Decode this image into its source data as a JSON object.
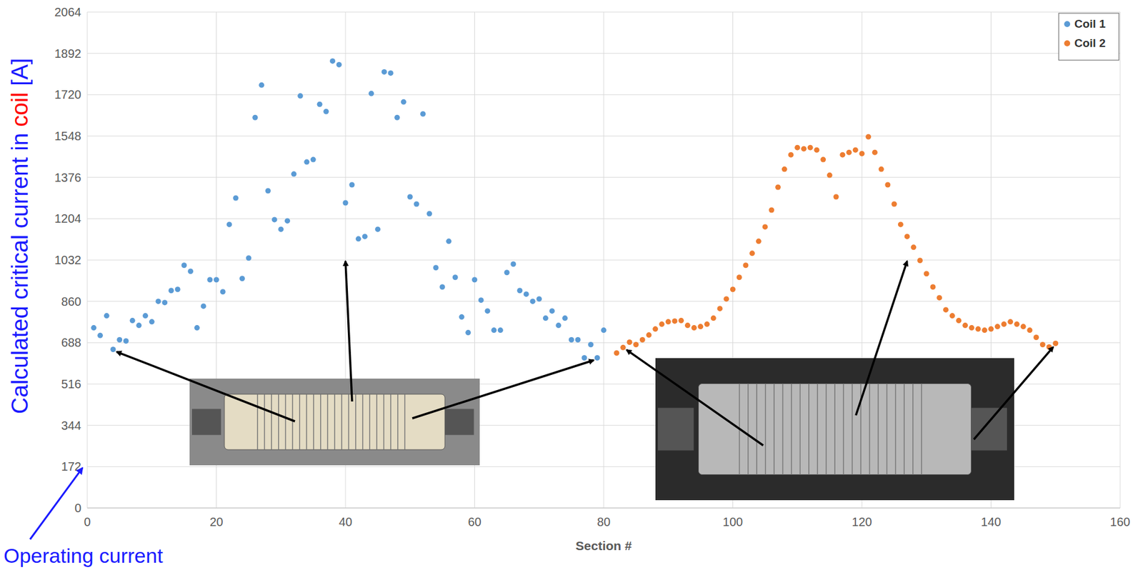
{
  "chart_data": {
    "type": "scatter",
    "xlabel": "Section #",
    "ylabel": [
      "Calculated critical current in ",
      "coil",
      " [A]"
    ],
    "annotations": [
      {
        "text": "Operating current",
        "y": 172
      }
    ],
    "xlim": [
      0,
      160
    ],
    "xticks": [
      0,
      20,
      40,
      60,
      80,
      100,
      120,
      140,
      160
    ],
    "ylim": [
      0,
      2064
    ],
    "yticks": [
      0,
      172,
      344,
      516,
      688,
      860,
      1032,
      1204,
      1376,
      1548,
      1720,
      1892,
      2064
    ],
    "grid": true,
    "legend": "top-right",
    "series": [
      {
        "name": "Coil 1",
        "color": "#5b9bd5",
        "marker": "circle",
        "x": [
          1,
          2,
          3,
          4,
          5,
          6,
          7,
          8,
          9,
          10,
          11,
          12,
          13,
          14,
          15,
          16,
          17,
          18,
          19,
          20,
          21,
          22,
          23,
          24,
          25,
          26,
          27,
          28,
          29,
          30,
          31,
          32,
          33,
          34,
          35,
          36,
          37,
          38,
          39,
          40,
          41,
          42,
          43,
          44,
          45,
          46,
          47,
          48,
          49,
          50,
          51,
          52,
          53,
          54,
          55,
          56,
          57,
          58,
          59,
          60,
          61,
          62,
          63,
          64,
          65,
          66,
          67,
          68,
          69,
          70,
          71,
          72,
          73,
          74,
          75,
          76,
          77,
          78,
          79,
          80
        ],
        "values": [
          750,
          718,
          800,
          660,
          700,
          695,
          780,
          760,
          800,
          775,
          860,
          855,
          905,
          910,
          1010,
          985,
          750,
          840,
          950,
          950,
          900,
          1180,
          1290,
          955,
          1040,
          1625,
          1760,
          1320,
          1200,
          1160,
          1195,
          1390,
          1715,
          1440,
          1450,
          1680,
          1650,
          1860,
          1845,
          1270,
          1345,
          1120,
          1130,
          1725,
          1160,
          1815,
          1810,
          1625,
          1690,
          1295,
          1265,
          1640,
          1225,
          1000,
          920,
          1110,
          960,
          795,
          730,
          950,
          865,
          820,
          740,
          740,
          980,
          1015,
          905,
          890,
          860,
          870,
          790,
          820,
          760,
          790,
          700,
          700,
          625,
          680,
          625,
          740
        ]
      },
      {
        "name": "Coil 2",
        "color": "#ed7d31",
        "marker": "circle",
        "x": [
          82,
          83,
          84,
          85,
          86,
          87,
          88,
          89,
          90,
          91,
          92,
          93,
          94,
          95,
          96,
          97,
          98,
          99,
          100,
          101,
          102,
          103,
          104,
          105,
          106,
          107,
          108,
          109,
          110,
          111,
          112,
          113,
          114,
          115,
          116,
          117,
          118,
          119,
          120,
          121,
          122,
          123,
          124,
          125,
          126,
          127,
          128,
          129,
          130,
          131,
          132,
          133,
          134,
          135,
          136,
          137,
          138,
          139,
          140,
          141,
          142,
          143,
          144,
          145,
          146,
          147,
          148,
          149,
          150
        ],
        "values": [
          645,
          668,
          690,
          680,
          700,
          720,
          745,
          765,
          775,
          778,
          780,
          760,
          750,
          755,
          765,
          790,
          830,
          870,
          910,
          960,
          1010,
          1060,
          1110,
          1170,
          1240,
          1335,
          1410,
          1470,
          1500,
          1495,
          1500,
          1490,
          1450,
          1385,
          1295,
          1470,
          1480,
          1490,
          1475,
          1545,
          1480,
          1410,
          1345,
          1265,
          1180,
          1130,
          1085,
          1030,
          975,
          920,
          875,
          825,
          800,
          780,
          760,
          750,
          745,
          740,
          745,
          755,
          765,
          775,
          765,
          755,
          740,
          710,
          680,
          670,
          685
        ]
      }
    ]
  }
}
